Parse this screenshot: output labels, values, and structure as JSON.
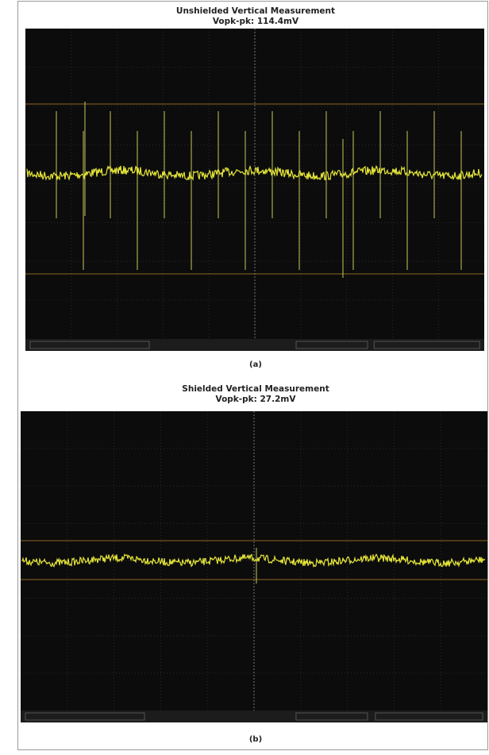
{
  "panels": [
    {
      "title": "Unshielded Vertical Measurement",
      "subtitle": "Vopk-pk: 114.4mV",
      "caption": "(a)"
    },
    {
      "title": "Shielded Vertical Measurement",
      "subtitle": "Vopk-pk: 27.2mV",
      "caption": "(b)"
    }
  ]
}
